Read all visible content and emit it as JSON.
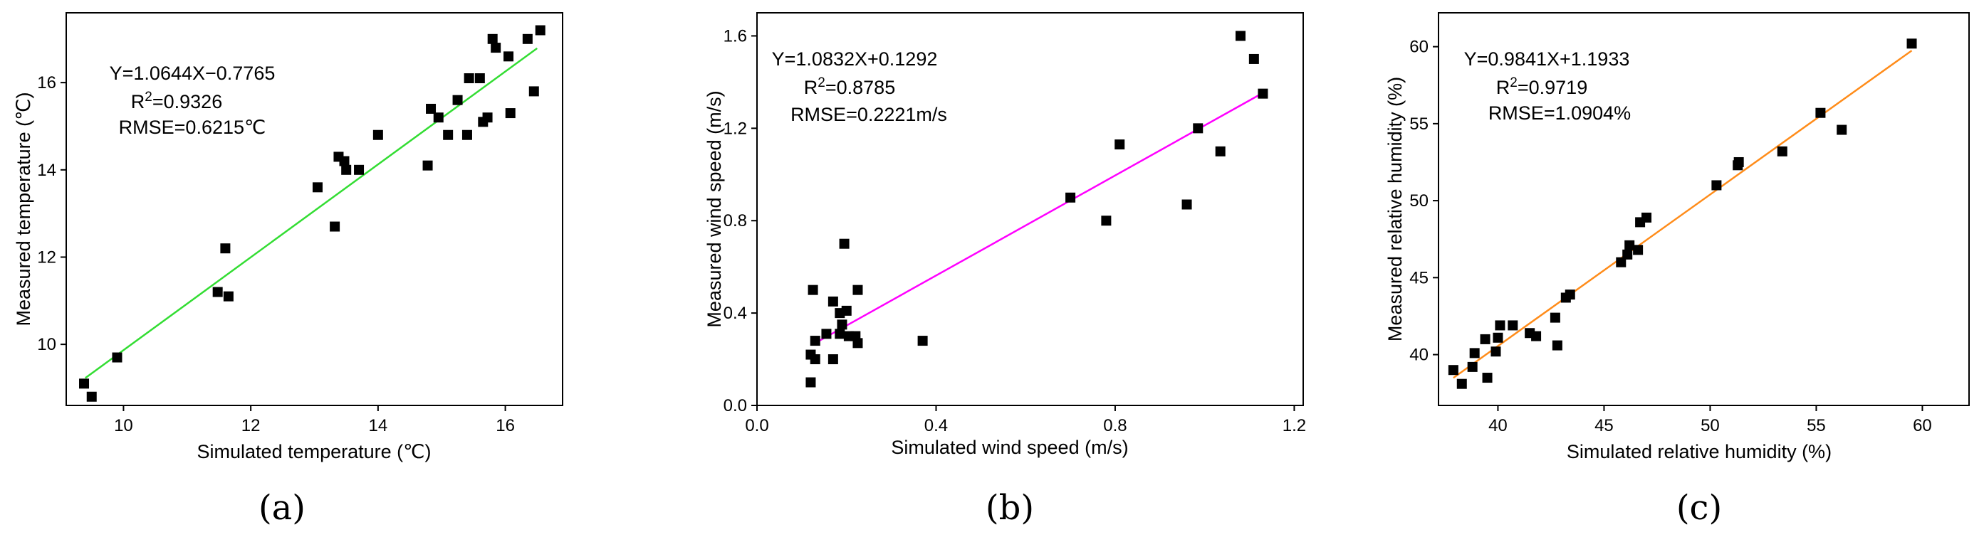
{
  "chart_data": [
    {
      "type": "scatter",
      "panel_label": "(a)",
      "xlabel": "Simulated temperature (℃)",
      "ylabel": "Measured temperature (℃)",
      "xlim": [
        9.1,
        16.9
      ],
      "ylim": [
        8.6,
        17.6
      ],
      "xticks": [
        10,
        12,
        14,
        16
      ],
      "yticks": [
        10,
        12,
        14,
        16
      ],
      "fit": {
        "slope": 1.0644,
        "intercept": -0.7765,
        "x_range": [
          9.4,
          16.5
        ],
        "color": "#33dd33"
      },
      "annotation": [
        "Y=1.0644X−0.7765",
        "R²=0.9326",
        "RMSE=0.6215℃"
      ],
      "points": [
        [
          9.38,
          9.1
        ],
        [
          9.5,
          8.8
        ],
        [
          9.9,
          9.7
        ],
        [
          11.48,
          11.2
        ],
        [
          11.6,
          12.2
        ],
        [
          11.65,
          11.1
        ],
        [
          13.05,
          13.6
        ],
        [
          13.32,
          12.7
        ],
        [
          13.38,
          14.3
        ],
        [
          13.47,
          14.2
        ],
        [
          13.5,
          14.0
        ],
        [
          13.7,
          14.0
        ],
        [
          14.0,
          14.8
        ],
        [
          14.78,
          14.1
        ],
        [
          14.83,
          15.4
        ],
        [
          14.95,
          15.2
        ],
        [
          15.1,
          14.8
        ],
        [
          15.25,
          15.6
        ],
        [
          15.4,
          14.8
        ],
        [
          15.43,
          16.1
        ],
        [
          15.6,
          16.1
        ],
        [
          15.65,
          15.1
        ],
        [
          15.72,
          15.2
        ],
        [
          15.8,
          17.0
        ],
        [
          15.85,
          16.8
        ],
        [
          16.05,
          16.6
        ],
        [
          16.08,
          15.3
        ],
        [
          16.35,
          17.0
        ],
        [
          16.45,
          15.8
        ],
        [
          16.55,
          17.2
        ]
      ]
    },
    {
      "type": "scatter",
      "panel_label": "(b)",
      "xlabel": "Simulated wind speed (m/s)",
      "ylabel": "Measured wind speed (m/s)",
      "xlim": [
        0.0,
        1.22
      ],
      "ylim": [
        0.0,
        1.7
      ],
      "xticks": [
        0.0,
        0.4,
        0.8,
        1.2
      ],
      "yticks": [
        0.0,
        0.4,
        0.8,
        1.2,
        1.6
      ],
      "fit": {
        "slope": 1.0832,
        "intercept": 0.1292,
        "x_range": [
          0.13,
          1.13
        ],
        "color": "#ff00ff"
      },
      "annotation": [
        "Y=1.0832X+0.1292",
        "R²=0.8785",
        "RMSE=0.2221m/s"
      ],
      "points": [
        [
          0.12,
          0.1
        ],
        [
          0.12,
          0.22
        ],
        [
          0.125,
          0.5
        ],
        [
          0.13,
          0.28
        ],
        [
          0.13,
          0.2
        ],
        [
          0.155,
          0.31
        ],
        [
          0.17,
          0.45
        ],
        [
          0.17,
          0.2
        ],
        [
          0.185,
          0.4
        ],
        [
          0.185,
          0.31
        ],
        [
          0.19,
          0.35
        ],
        [
          0.195,
          0.7
        ],
        [
          0.2,
          0.41
        ],
        [
          0.205,
          0.3
        ],
        [
          0.22,
          0.3
        ],
        [
          0.225,
          0.27
        ],
        [
          0.225,
          0.5
        ],
        [
          0.37,
          0.28
        ],
        [
          0.7,
          0.9
        ],
        [
          0.78,
          0.8
        ],
        [
          0.81,
          1.13
        ],
        [
          0.96,
          0.87
        ],
        [
          0.985,
          1.2
        ],
        [
          1.035,
          1.1
        ],
        [
          1.08,
          1.6
        ],
        [
          1.11,
          1.5
        ],
        [
          1.13,
          1.35
        ]
      ]
    },
    {
      "type": "scatter",
      "panel_label": "(c)",
      "xlabel": "Simulated relative humidity (%)",
      "ylabel": "Measured  relative humidity (%)",
      "xlim": [
        37.2,
        62.2
      ],
      "ylim": [
        36.7,
        62.2
      ],
      "xticks": [
        40,
        45,
        50,
        55,
        60
      ],
      "yticks": [
        40,
        45,
        50,
        55,
        60
      ],
      "fit": {
        "slope": 0.9841,
        "intercept": 1.1933,
        "x_range": [
          37.9,
          59.5
        ],
        "color": "#ff8c1a"
      },
      "annotation": [
        "Y=0.9841X+1.1933",
        "R²=0.9719",
        "RMSE=1.0904%"
      ],
      "points": [
        [
          37.9,
          39.0
        ],
        [
          38.3,
          38.1
        ],
        [
          38.8,
          39.2
        ],
        [
          38.9,
          40.1
        ],
        [
          39.4,
          41.0
        ],
        [
          39.5,
          38.5
        ],
        [
          39.9,
          40.2
        ],
        [
          40.0,
          41.1
        ],
        [
          40.1,
          41.9
        ],
        [
          40.7,
          41.9
        ],
        [
          41.5,
          41.4
        ],
        [
          41.8,
          41.2
        ],
        [
          42.7,
          42.4
        ],
        [
          42.8,
          40.6
        ],
        [
          43.2,
          43.7
        ],
        [
          43.4,
          43.9
        ],
        [
          45.8,
          46.0
        ],
        [
          46.1,
          46.5
        ],
        [
          46.2,
          47.1
        ],
        [
          46.6,
          46.8
        ],
        [
          46.7,
          48.6
        ],
        [
          47.0,
          48.9
        ],
        [
          50.3,
          51.0
        ],
        [
          51.3,
          52.3
        ],
        [
          51.35,
          52.5
        ],
        [
          53.4,
          53.2
        ],
        [
          55.2,
          55.7
        ],
        [
          56.2,
          54.6
        ],
        [
          59.5,
          60.2
        ]
      ]
    }
  ]
}
